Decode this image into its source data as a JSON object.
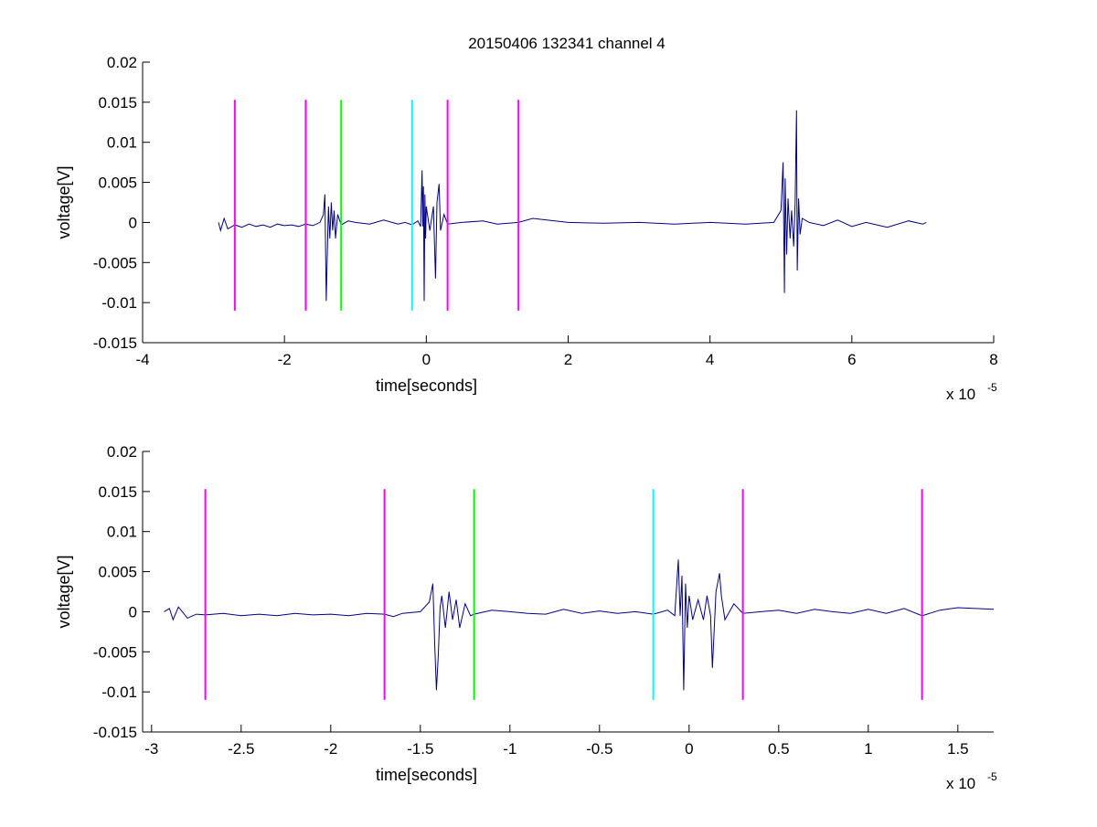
{
  "figure": {
    "title": "20150406 132341 channel 4"
  },
  "chart_data": [
    {
      "type": "line",
      "title": "20150406 132341 channel 4",
      "xlabel": "time[seconds]",
      "ylabel": "voltage[V]",
      "x_multiplier_label": "x 10",
      "x_multiplier_exp": "-5",
      "xlim": [
        -4,
        8
      ],
      "ylim": [
        -0.015,
        0.02
      ],
      "xticks": [
        -4,
        -2,
        0,
        2,
        4,
        6,
        8
      ],
      "xtick_labels": [
        "-4",
        "-2",
        "0",
        "2",
        "4",
        "6",
        "8"
      ],
      "yticks": [
        -0.015,
        -0.01,
        -0.005,
        0,
        0.005,
        0.01,
        0.015,
        0.02
      ],
      "ytick_labels": [
        "-0.015",
        "-0.01",
        "-0.005",
        "0",
        "0.005",
        "0.01",
        "0.015",
        "0.02"
      ],
      "grid": false,
      "series": [
        {
          "color": "#00008b",
          "x": [
            -2.93,
            -2.9,
            -2.85,
            -2.8,
            -2.7,
            -2.6,
            -2.5,
            -2.4,
            -2.3,
            -2.2,
            -2.1,
            -2.0,
            -1.9,
            -1.8,
            -1.7,
            -1.6,
            -1.5,
            -1.45,
            -1.43,
            -1.42,
            -1.41,
            -1.4,
            -1.38,
            -1.36,
            -1.34,
            -1.32,
            -1.3,
            -1.28,
            -1.25,
            -1.2,
            -1.1,
            -1.0,
            -0.8,
            -0.6,
            -0.4,
            -0.3,
            -0.2,
            -0.12,
            -0.08,
            -0.06,
            -0.05,
            -0.04,
            -0.03,
            -0.02,
            -0.01,
            0.0,
            0.05,
            0.1,
            0.13,
            0.15,
            0.18,
            0.2,
            0.25,
            0.3,
            0.5,
            0.8,
            1.0,
            1.3,
            1.5,
            1.7,
            2.0,
            2.5,
            3.0,
            3.5,
            4.0,
            4.5,
            4.9,
            5.0,
            5.03,
            5.05,
            5.06,
            5.08,
            5.1,
            5.13,
            5.15,
            5.18,
            5.2,
            5.22,
            5.23,
            5.25,
            5.27,
            5.3,
            5.4,
            5.6,
            5.8,
            6.0,
            6.2,
            6.5,
            6.8,
            7.0,
            7.05
          ],
          "y": [
            0,
            -0.001,
            0.0005,
            -0.0008,
            -0.0003,
            -0.0006,
            -0.0002,
            -0.0005,
            -0.0003,
            -0.0006,
            -0.0002,
            -0.0004,
            -0.0003,
            -0.0005,
            -0.0002,
            -0.0004,
            0.0,
            0.001,
            0.0035,
            -0.004,
            -0.0098,
            -0.0055,
            0.002,
            -0.002,
            0.0025,
            -0.001,
            0.0015,
            -0.002,
            0.001,
            -0.0003,
            0.0002,
            0.0,
            -0.0002,
            0.0003,
            -0.0002,
            0.0,
            -0.0003,
            0.0002,
            -0.0005,
            0.0065,
            -0.0005,
            0.0045,
            -0.0098,
            0.0035,
            -0.002,
            0.002,
            -0.001,
            0.002,
            -0.007,
            0.0025,
            0.0048,
            -0.001,
            0.001,
            -0.0002,
            0.0,
            0.0002,
            -0.0002,
            0.0,
            0.0005,
            0.0003,
            0.0,
            -0.0001,
            0.0,
            -0.0002,
            0.0,
            -0.0002,
            0.0,
            0.0015,
            0.0075,
            -0.0088,
            0.0055,
            -0.004,
            0.003,
            -0.002,
            0.0015,
            -0.003,
            0.0025,
            0.014,
            -0.006,
            0.003,
            -0.0015,
            0.0005,
            0.0,
            -0.0004,
            0.0003,
            -0.0005,
            0.0,
            -0.0006,
            0.0002,
            -0.0002,
            0.0
          ]
        }
      ],
      "markers": [
        {
          "x": -2.7,
          "color": "#ff00ff",
          "y": [
            -0.011,
            0.0153
          ]
        },
        {
          "x": -1.7,
          "color": "#ff00ff",
          "y": [
            -0.011,
            0.0153
          ]
        },
        {
          "x": -1.2,
          "color": "#00ff00",
          "y": [
            -0.011,
            0.0153
          ]
        },
        {
          "x": -0.2,
          "color": "#00ffff",
          "y": [
            -0.011,
            0.0153
          ]
        },
        {
          "x": 0.3,
          "color": "#ff00ff",
          "y": [
            -0.011,
            0.0153
          ]
        },
        {
          "x": 1.3,
          "color": "#ff00ff",
          "y": [
            -0.011,
            0.0153
          ]
        }
      ]
    },
    {
      "type": "line",
      "title": "",
      "xlabel": "time[seconds]",
      "ylabel": "voltage[V]",
      "x_multiplier_label": "x 10",
      "x_multiplier_exp": "-5",
      "xlim": [
        -3.05,
        1.7
      ],
      "ylim": [
        -0.015,
        0.02
      ],
      "xticks": [
        -3,
        -2.5,
        -2,
        -1.5,
        -1,
        -0.5,
        0,
        0.5,
        1,
        1.5
      ],
      "xtick_labels": [
        "-3",
        "-2.5",
        "-2",
        "-1.5",
        "-1",
        "-0.5",
        "0",
        "0.5",
        "1",
        "1.5"
      ],
      "yticks": [
        -0.015,
        -0.01,
        -0.005,
        0,
        0.005,
        0.01,
        0.015,
        0.02
      ],
      "ytick_labels": [
        "-0.015",
        "-0.01",
        "-0.005",
        "0",
        "0.005",
        "0.01",
        "0.015",
        "0.02"
      ],
      "grid": false,
      "series": [
        {
          "color": "#00008b",
          "x": [
            -2.93,
            -2.9,
            -2.88,
            -2.85,
            -2.8,
            -2.75,
            -2.7,
            -2.6,
            -2.5,
            -2.4,
            -2.3,
            -2.2,
            -2.1,
            -2.0,
            -1.9,
            -1.8,
            -1.7,
            -1.65,
            -1.6,
            -1.5,
            -1.45,
            -1.43,
            -1.42,
            -1.41,
            -1.4,
            -1.39,
            -1.38,
            -1.36,
            -1.34,
            -1.32,
            -1.3,
            -1.28,
            -1.25,
            -1.22,
            -1.2,
            -1.1,
            -1.0,
            -0.9,
            -0.8,
            -0.7,
            -0.6,
            -0.5,
            -0.4,
            -0.3,
            -0.2,
            -0.12,
            -0.08,
            -0.06,
            -0.05,
            -0.04,
            -0.03,
            -0.02,
            -0.01,
            0.0,
            0.02,
            0.05,
            0.08,
            0.1,
            0.12,
            0.13,
            0.15,
            0.17,
            0.18,
            0.2,
            0.25,
            0.3,
            0.4,
            0.5,
            0.6,
            0.7,
            0.8,
            0.9,
            1.0,
            1.1,
            1.2,
            1.3,
            1.4,
            1.5,
            1.6,
            1.7
          ],
          "y": [
            0,
            0.0004,
            -0.001,
            0.0006,
            -0.0008,
            -0.0003,
            -0.0004,
            -0.0002,
            -0.0005,
            -0.0003,
            -0.0005,
            -0.0002,
            -0.0004,
            -0.0003,
            -0.0005,
            -0.0002,
            -0.0003,
            -0.0006,
            -0.0002,
            0.0,
            0.0012,
            0.0035,
            -0.004,
            -0.0098,
            -0.0055,
            0.0005,
            0.002,
            -0.002,
            0.0025,
            -0.001,
            0.0015,
            -0.002,
            0.001,
            -0.0005,
            -0.0003,
            0.0002,
            0.0,
            -0.0002,
            -0.0003,
            0.0003,
            -0.0002,
            0.0001,
            -0.0002,
            0.0,
            -0.0003,
            0.0002,
            -0.0005,
            0.0065,
            -0.0005,
            0.0045,
            -0.0098,
            0.0035,
            -0.002,
            0.002,
            -0.001,
            0.0015,
            -0.001,
            0.002,
            -0.0005,
            -0.007,
            0.0025,
            0.0048,
            0.002,
            -0.001,
            0.001,
            -0.0002,
            0.0,
            0.0002,
            -0.0002,
            0.0003,
            0.0,
            -0.0002,
            0.0003,
            -0.0002,
            0.0004,
            -0.0005,
            0.0002,
            0.0005,
            0.0004,
            0.0003
          ]
        }
      ],
      "markers": [
        {
          "x": -2.7,
          "color": "#ff00ff",
          "y": [
            -0.011,
            0.0153
          ]
        },
        {
          "x": -1.7,
          "color": "#ff00ff",
          "y": [
            -0.011,
            0.0153
          ]
        },
        {
          "x": -1.2,
          "color": "#00ff00",
          "y": [
            -0.011,
            0.0153
          ]
        },
        {
          "x": -0.2,
          "color": "#00ffff",
          "y": [
            -0.011,
            0.0153
          ]
        },
        {
          "x": 0.3,
          "color": "#ff00ff",
          "y": [
            -0.011,
            0.0153
          ]
        },
        {
          "x": 1.3,
          "color": "#ff00ff",
          "y": [
            -0.011,
            0.0153
          ]
        }
      ]
    }
  ]
}
